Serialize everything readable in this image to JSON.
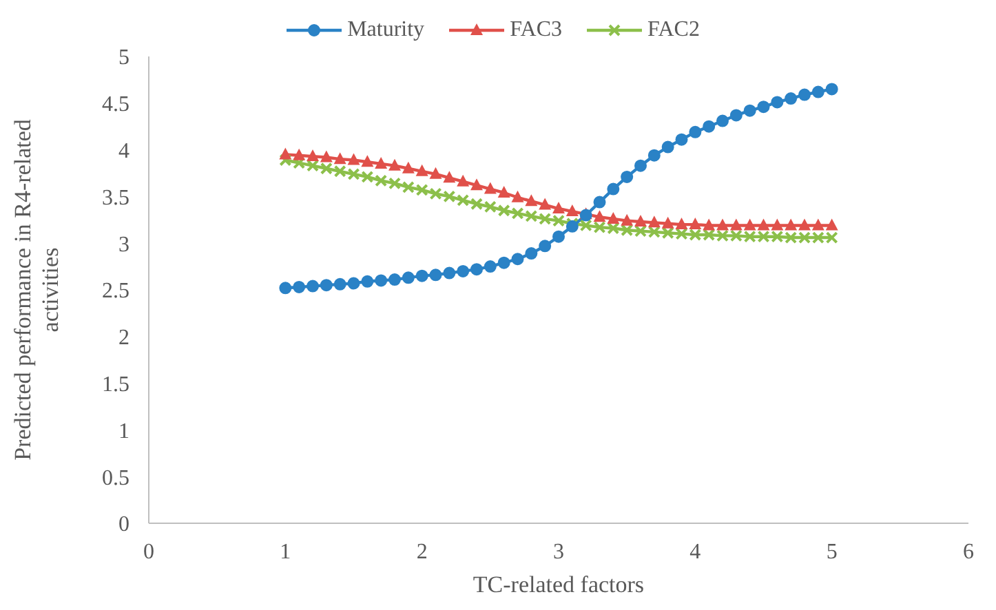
{
  "chart_data": {
    "type": "line",
    "xlabel": "TC-related factors",
    "ylabel": "Predicted performance in R4-related activities",
    "x": [
      1,
      1.1,
      1.2,
      1.3,
      1.4,
      1.5,
      1.6,
      1.7,
      1.8,
      1.9,
      2,
      2.1,
      2.2,
      2.3,
      2.4,
      2.5,
      2.6,
      2.7,
      2.8,
      2.9,
      3,
      3.1,
      3.2,
      3.3,
      3.4,
      3.5,
      3.6,
      3.7,
      3.8,
      3.9,
      4,
      4.1,
      4.2,
      4.3,
      4.4,
      4.5,
      4.6,
      4.7,
      4.8,
      4.9,
      5
    ],
    "series": [
      {
        "name": "Maturity",
        "color": "#2a82c6",
        "marker": "circle",
        "values": [
          2.52,
          2.53,
          2.54,
          2.55,
          2.56,
          2.57,
          2.59,
          2.6,
          2.61,
          2.63,
          2.65,
          2.66,
          2.68,
          2.7,
          2.72,
          2.75,
          2.79,
          2.83,
          2.89,
          2.97,
          3.07,
          3.18,
          3.3,
          3.44,
          3.58,
          3.71,
          3.83,
          3.94,
          4.03,
          4.11,
          4.19,
          4.25,
          4.31,
          4.37,
          4.42,
          4.46,
          4.51,
          4.55,
          4.59,
          4.62,
          4.65
        ]
      },
      {
        "name": "FAC3",
        "color": "#e0504a",
        "marker": "triangle",
        "values": [
          3.95,
          3.94,
          3.93,
          3.92,
          3.9,
          3.89,
          3.87,
          3.85,
          3.83,
          3.8,
          3.77,
          3.74,
          3.7,
          3.66,
          3.62,
          3.58,
          3.54,
          3.49,
          3.45,
          3.41,
          3.37,
          3.34,
          3.31,
          3.28,
          3.26,
          3.24,
          3.23,
          3.22,
          3.21,
          3.2,
          3.2,
          3.19,
          3.19,
          3.19,
          3.19,
          3.19,
          3.19,
          3.19,
          3.19,
          3.19,
          3.19
        ]
      },
      {
        "name": "FAC2",
        "color": "#8cbf4a",
        "marker": "cross",
        "values": [
          3.89,
          3.86,
          3.83,
          3.8,
          3.77,
          3.74,
          3.71,
          3.67,
          3.64,
          3.6,
          3.57,
          3.53,
          3.5,
          3.46,
          3.42,
          3.39,
          3.35,
          3.32,
          3.29,
          3.26,
          3.24,
          3.21,
          3.19,
          3.17,
          3.16,
          3.14,
          3.13,
          3.12,
          3.11,
          3.1,
          3.09,
          3.09,
          3.08,
          3.08,
          3.07,
          3.07,
          3.07,
          3.06,
          3.06,
          3.06,
          3.06
        ]
      }
    ],
    "xlim": [
      0,
      6
    ],
    "xticks": [
      0,
      1,
      2,
      3,
      4,
      5,
      6
    ],
    "ylim": [
      0,
      5
    ],
    "yticks": [
      0,
      0.5,
      1,
      1.5,
      2,
      2.5,
      3,
      3.5,
      4,
      4.5,
      5
    ],
    "grid": false,
    "legend": "top",
    "line_style": "solid"
  }
}
